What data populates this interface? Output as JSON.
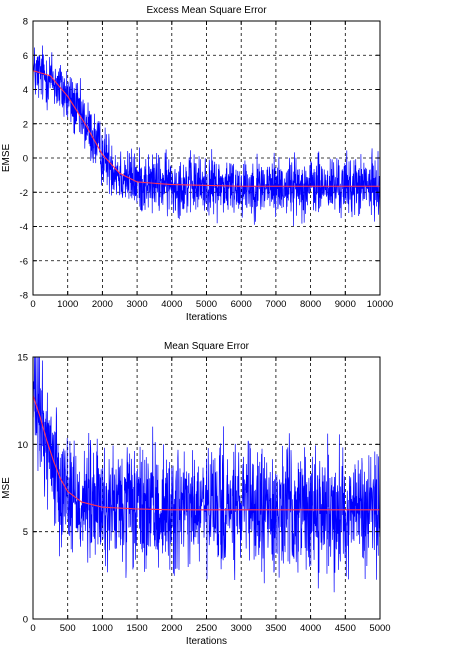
{
  "chart_data": [
    {
      "type": "line",
      "title": "Excess Mean Square Error",
      "xlabel": "Iterations",
      "ylabel": "EMSE",
      "xlim": [
        0,
        10000
      ],
      "ylim": [
        -8,
        8
      ],
      "xticks": [
        0,
        1000,
        2000,
        3000,
        4000,
        5000,
        6000,
        7000,
        8000,
        9000,
        10000
      ],
      "yticks": [
        -8,
        -6,
        -4,
        -2,
        0,
        2,
        4,
        6,
        8
      ],
      "grid": true,
      "series": [
        {
          "color": "#0000ff",
          "kind": "noisy",
          "noise_range": 1.3,
          "x": [
            0,
            500,
            1000,
            1500,
            2000,
            2500,
            3000,
            4000,
            5000,
            6000,
            7000,
            8000,
            9000,
            10000
          ],
          "values": [
            5.0,
            4.7,
            3.6,
            2.0,
            0.2,
            -0.9,
            -1.4,
            -1.55,
            -1.6,
            -1.65,
            -1.65,
            -1.65,
            -1.65,
            -1.65
          ]
        },
        {
          "color": "#ff3355",
          "kind": "smooth",
          "x": [
            0,
            500,
            1000,
            1500,
            2000,
            2500,
            3000,
            4000,
            5000,
            6000,
            7000,
            8000,
            9000,
            10000
          ],
          "values": [
            5.1,
            4.8,
            3.6,
            2.0,
            0.2,
            -0.9,
            -1.4,
            -1.55,
            -1.6,
            -1.65,
            -1.65,
            -1.65,
            -1.65,
            -1.65
          ]
        }
      ]
    },
    {
      "type": "line",
      "title": "Mean Square Error",
      "xlabel": "Iterations",
      "ylabel": "MSE",
      "xlim": [
        0,
        5000
      ],
      "ylim": [
        0,
        15
      ],
      "xticks": [
        0,
        500,
        1000,
        1500,
        2000,
        2500,
        3000,
        3500,
        4000,
        4500,
        5000
      ],
      "yticks": [
        0,
        5,
        10,
        15
      ],
      "grid": true,
      "series": [
        {
          "color": "#0000ff",
          "kind": "noisy",
          "noise_range": 2.6,
          "x": [
            0,
            100,
            200,
            300,
            400,
            500,
            700,
            1000,
            1500,
            2000,
            3000,
            4000,
            5000
          ],
          "values": [
            12.5,
            11.5,
            10.2,
            9.0,
            8.0,
            7.3,
            6.7,
            6.4,
            6.3,
            6.25,
            6.25,
            6.25,
            6.25
          ]
        },
        {
          "color": "#ff3355",
          "kind": "smooth",
          "x": [
            0,
            100,
            200,
            300,
            400,
            500,
            700,
            1000,
            1500,
            2000,
            3000,
            4000,
            5000
          ],
          "values": [
            12.8,
            11.6,
            10.2,
            9.0,
            8.0,
            7.3,
            6.7,
            6.4,
            6.3,
            6.25,
            6.25,
            6.25,
            6.25
          ]
        }
      ]
    }
  ]
}
